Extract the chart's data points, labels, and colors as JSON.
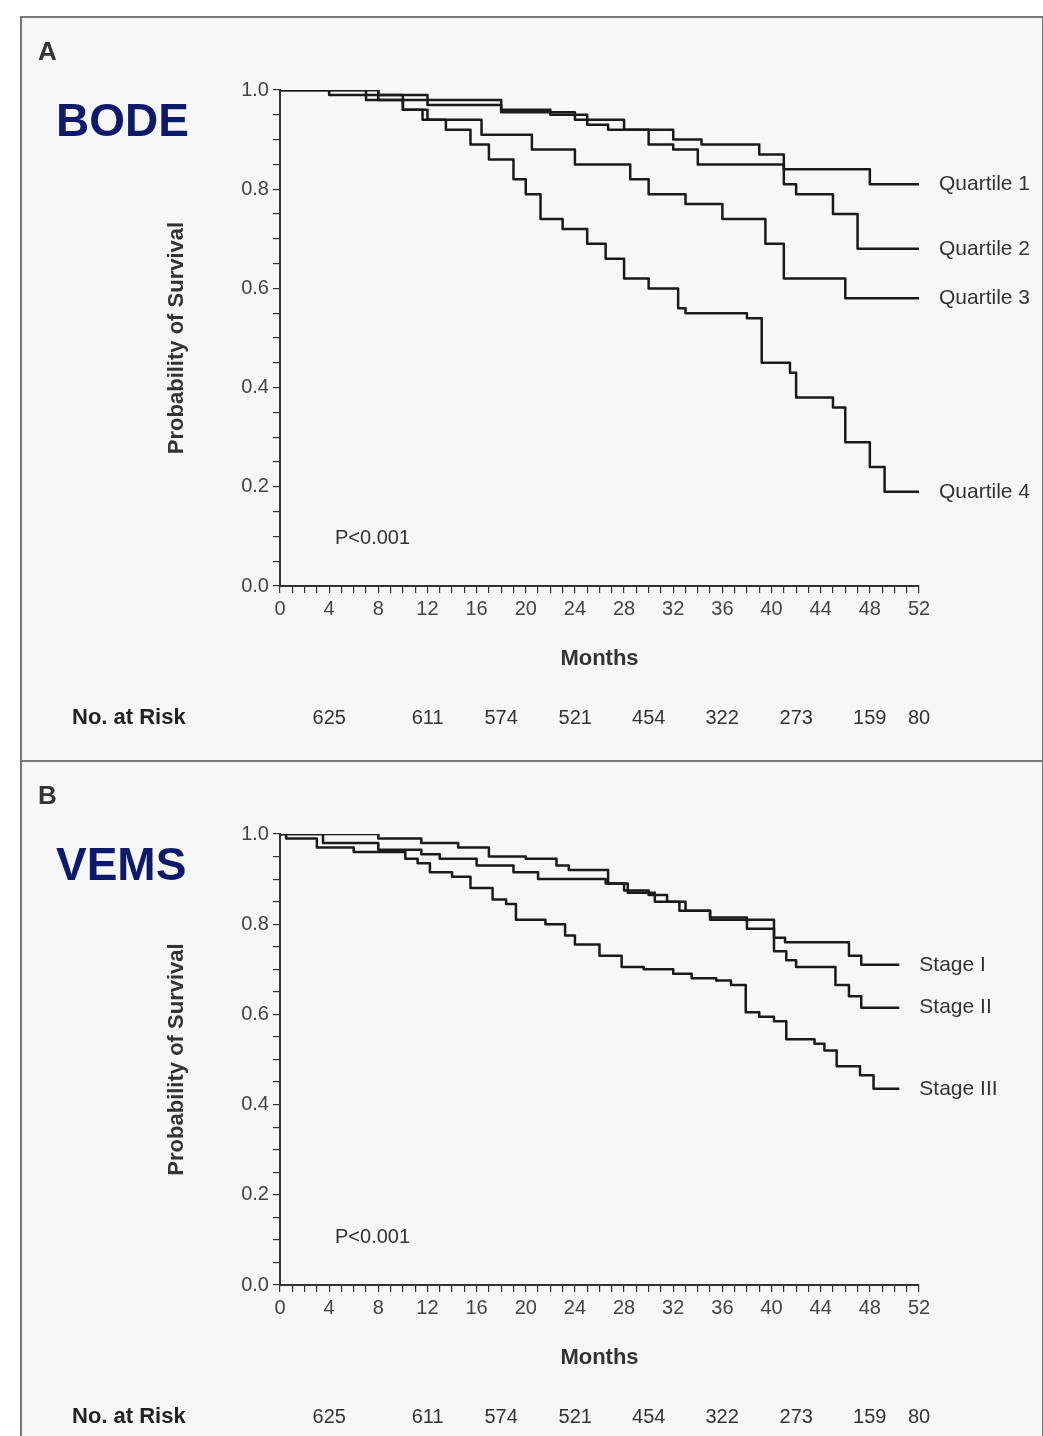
{
  "chart_data": [
    {
      "type": "step",
      "title": "BODE",
      "xlabel": "Months",
      "ylabel": "Probability of Survival",
      "legend": false,
      "annotations": [
        "A",
        "P<0.001",
        "No. at Risk",
        "625",
        "611",
        "574",
        "521",
        "454",
        "322",
        "273",
        "159",
        "80"
      ],
      "xlim": [
        0,
        52
      ],
      "xticks": [
        0,
        {
          "value": 1,
          "label": null
        },
        {
          "value": 2,
          "label": null
        },
        {
          "value": 3,
          "label": null
        },
        4,
        {
          "value": 5,
          "label": null
        },
        {
          "value": 6,
          "label": null
        },
        {
          "value": 7,
          "label": null
        },
        8,
        {
          "value": 9,
          "label": null
        },
        {
          "value": 10,
          "label": null
        },
        {
          "value": 11,
          "label": null
        },
        12,
        {
          "value": 13,
          "label": null
        },
        {
          "value": 14,
          "label": null
        },
        {
          "value": 15,
          "label": null
        },
        16,
        {
          "value": 17,
          "label": null
        },
        {
          "value": 18,
          "label": null
        },
        {
          "value": 19,
          "label": null
        },
        20,
        {
          "value": 21,
          "label": null
        },
        {
          "value": 22,
          "label": null
        },
        {
          "value": 23,
          "label": null
        },
        24,
        {
          "value": 25,
          "label": null
        },
        {
          "value": 26,
          "label": null
        },
        {
          "value": 27,
          "label": null
        },
        28,
        {
          "value": 29,
          "label": null
        },
        {
          "value": 30,
          "label": null
        },
        {
          "value": 31,
          "label": null
        },
        32,
        {
          "value": 33,
          "label": null
        },
        {
          "value": 34,
          "label": null
        },
        {
          "value": 35,
          "label": null
        },
        36,
        {
          "value": 37,
          "label": null
        },
        {
          "value": 38,
          "label": null
        },
        {
          "value": 39,
          "label": null
        },
        40,
        {
          "value": 41,
          "label": null
        },
        {
          "value": 42,
          "label": null
        },
        {
          "value": 43,
          "label": null
        },
        44,
        {
          "value": 45,
          "label": null
        },
        {
          "value": 46,
          "label": null
        },
        {
          "value": 47,
          "label": null
        },
        48,
        {
          "value": 49,
          "label": null
        },
        {
          "value": 50,
          "label": null
        },
        {
          "value": 51,
          "label": null
        },
        52
      ],
      "ylim": [
        0,
        1
      ],
      "yticks": [
        {
          "value": 0,
          "label": "0.0"
        },
        {
          "value": 0.05,
          "label": null
        },
        {
          "value": 0.1,
          "label": null
        },
        {
          "value": 0.15,
          "label": null
        },
        0.2,
        {
          "value": 0.25,
          "label": null
        },
        {
          "value": 0.3,
          "label": null
        },
        {
          "value": 0.35,
          "label": null
        },
        0.4,
        {
          "value": 0.45,
          "label": null
        },
        {
          "value": 0.5,
          "label": null
        },
        {
          "value": 0.55,
          "label": null
        },
        0.6,
        {
          "value": 0.65,
          "label": null
        },
        {
          "value": 0.7,
          "label": null
        },
        {
          "value": 0.75,
          "label": null
        },
        0.8,
        {
          "value": 0.85,
          "label": null
        },
        {
          "value": 0.9,
          "label": null
        },
        {
          "value": 0.95,
          "label": null
        },
        {
          "value": 1,
          "label": "1.0"
        }
      ],
      "series": [
        {
          "name": "Quartile 1",
          "color": "#1a1a1a",
          "x": [
            0,
            7,
            18,
            22,
            25,
            26.7,
            32,
            34.3,
            39,
            41,
            48,
            52
          ],
          "values": [
            1,
            0.98,
            0.96,
            0.95,
            0.93,
            0.92,
            0.9,
            0.89,
            0.87,
            0.84,
            0.81,
            0.81
          ]
        },
        {
          "name": "Quartile 2",
          "color": "#1a1a1a",
          "x": [
            0,
            8,
            12,
            18,
            24,
            28,
            30,
            32,
            34,
            41,
            42,
            45,
            47,
            52
          ],
          "values": [
            1,
            0.99,
            0.97,
            0.955,
            0.94,
            0.92,
            0.89,
            0.88,
            0.85,
            0.81,
            0.79,
            0.75,
            0.68,
            0.68
          ]
        },
        {
          "name": "Quartile 3",
          "color": "#1a1a1a",
          "x": [
            0,
            8,
            10,
            12,
            16.4,
            20.5,
            24,
            28.5,
            30,
            33,
            36,
            39.5,
            41,
            46,
            52
          ],
          "values": [
            1,
            0.98,
            0.96,
            0.94,
            0.91,
            0.88,
            0.85,
            0.82,
            0.79,
            0.77,
            0.74,
            0.69,
            0.62,
            0.58,
            0.58
          ]
        },
        {
          "name": "Quartile 4",
          "color": "#1a1a1a",
          "x": [
            0,
            4,
            10,
            11.6,
            13.5,
            15.5,
            17,
            19,
            20,
            21.2,
            23,
            25,
            26.5,
            28,
            30,
            32.4,
            33,
            38,
            39.2,
            41.5,
            42,
            45,
            46,
            48,
            49.2,
            52
          ],
          "values": [
            1,
            0.99,
            0.96,
            0.94,
            0.92,
            0.89,
            0.86,
            0.82,
            0.79,
            0.74,
            0.72,
            0.69,
            0.66,
            0.62,
            0.6,
            0.56,
            0.55,
            0.54,
            0.45,
            0.43,
            0.38,
            0.36,
            0.29,
            0.24,
            0.19,
            0.19
          ]
        }
      ]
    },
    {
      "type": "step",
      "title": "VEMS",
      "xlabel": "Months",
      "ylabel": "Probability of Survival",
      "legend": false,
      "annotations": [
        "B",
        "P<0.001",
        "No. at Risk",
        "625",
        "611",
        "574",
        "521",
        "454",
        "322",
        "273",
        "159",
        "80"
      ],
      "xlim": [
        0,
        52
      ],
      "xticks": [
        0,
        {
          "value": 1,
          "label": null
        },
        {
          "value": 2,
          "label": null
        },
        {
          "value": 3,
          "label": null
        },
        4,
        {
          "value": 5,
          "label": null
        },
        {
          "value": 6,
          "label": null
        },
        {
          "value": 7,
          "label": null
        },
        8,
        {
          "value": 9,
          "label": null
        },
        {
          "value": 10,
          "label": null
        },
        {
          "value": 11,
          "label": null
        },
        12,
        {
          "value": 13,
          "label": null
        },
        {
          "value": 14,
          "label": null
        },
        {
          "value": 15,
          "label": null
        },
        16,
        {
          "value": 17,
          "label": null
        },
        {
          "value": 18,
          "label": null
        },
        {
          "value": 19,
          "label": null
        },
        20,
        {
          "value": 21,
          "label": null
        },
        {
          "value": 22,
          "label": null
        },
        {
          "value": 23,
          "label": null
        },
        24,
        {
          "value": 25,
          "label": null
        },
        {
          "value": 26,
          "label": null
        },
        {
          "value": 27,
          "label": null
        },
        28,
        {
          "value": 29,
          "label": null
        },
        {
          "value": 30,
          "label": null
        },
        {
          "value": 31,
          "label": null
        },
        32,
        {
          "value": 33,
          "label": null
        },
        {
          "value": 34,
          "label": null
        },
        {
          "value": 35,
          "label": null
        },
        36,
        {
          "value": 37,
          "label": null
        },
        {
          "value": 38,
          "label": null
        },
        {
          "value": 39,
          "label": null
        },
        40,
        {
          "value": 41,
          "label": null
        },
        {
          "value": 42,
          "label": null
        },
        {
          "value": 43,
          "label": null
        },
        44,
        {
          "value": 45,
          "label": null
        },
        {
          "value": 46,
          "label": null
        },
        {
          "value": 47,
          "label": null
        },
        48,
        {
          "value": 49,
          "label": null
        },
        {
          "value": 50,
          "label": null
        },
        {
          "value": 51,
          "label": null
        },
        52
      ],
      "ylim": [
        0,
        1
      ],
      "yticks": [
        {
          "value": 0,
          "label": "0.0"
        },
        {
          "value": 0.05,
          "label": null
        },
        {
          "value": 0.1,
          "label": null
        },
        {
          "value": 0.15,
          "label": null
        },
        0.2,
        {
          "value": 0.25,
          "label": null
        },
        {
          "value": 0.3,
          "label": null
        },
        {
          "value": 0.35,
          "label": null
        },
        0.4,
        {
          "value": 0.45,
          "label": null
        },
        {
          "value": 0.5,
          "label": null
        },
        {
          "value": 0.55,
          "label": null
        },
        0.6,
        {
          "value": 0.65,
          "label": null
        },
        {
          "value": 0.7,
          "label": null
        },
        {
          "value": 0.75,
          "label": null
        },
        0.8,
        {
          "value": 0.85,
          "label": null
        },
        {
          "value": 0.9,
          "label": null
        },
        {
          "value": 0.95,
          "label": null
        },
        {
          "value": 1,
          "label": "1.0"
        }
      ],
      "series": [
        {
          "name": "Stage I",
          "color": "#1a1a1a",
          "x": [
            0,
            8,
            11.5,
            14.5,
            17,
            20,
            22.5,
            23.5,
            26.7,
            28.3,
            30.5,
            32.5,
            35,
            40.2,
            41.1,
            46.3,
            47.3,
            50.4
          ],
          "values": [
            1,
            0.99,
            0.98,
            0.97,
            0.95,
            0.945,
            0.93,
            0.92,
            0.89,
            0.87,
            0.85,
            0.83,
            0.81,
            0.77,
            0.76,
            0.73,
            0.71,
            0.71
          ]
        },
        {
          "name": "Stage II",
          "color": "#1a1a1a",
          "x": [
            0,
            3.5,
            8,
            11.5,
            13,
            16,
            19,
            21,
            26.5,
            28,
            30,
            31.5,
            33,
            35,
            38,
            40.2,
            41.2,
            42,
            45.2,
            46.3,
            47.3,
            50.4
          ],
          "values": [
            1,
            0.98,
            0.965,
            0.955,
            0.945,
            0.93,
            0.915,
            0.9,
            0.89,
            0.875,
            0.865,
            0.85,
            0.83,
            0.815,
            0.79,
            0.74,
            0.72,
            0.705,
            0.665,
            0.64,
            0.615,
            0.615
          ]
        },
        {
          "name": "Stage III",
          "color": "#1a1a1a",
          "x": [
            0,
            0.5,
            3,
            6,
            10.2,
            11.2,
            12.2,
            14,
            15.5,
            17.3,
            18.4,
            19.2,
            21.6,
            23.2,
            24,
            26,
            27.8,
            29.6,
            32,
            33.5,
            35.5,
            36.7,
            37.9,
            39,
            40.2,
            41.2,
            43.5,
            44.3,
            45.3,
            47.2,
            48.3,
            50.4
          ],
          "values": [
            1,
            0.99,
            0.97,
            0.96,
            0.945,
            0.935,
            0.915,
            0.905,
            0.88,
            0.855,
            0.845,
            0.81,
            0.8,
            0.775,
            0.755,
            0.73,
            0.705,
            0.7,
            0.69,
            0.68,
            0.675,
            0.665,
            0.605,
            0.595,
            0.585,
            0.545,
            0.535,
            0.52,
            0.485,
            0.465,
            0.435,
            0.435
          ]
        }
      ]
    }
  ]
}
